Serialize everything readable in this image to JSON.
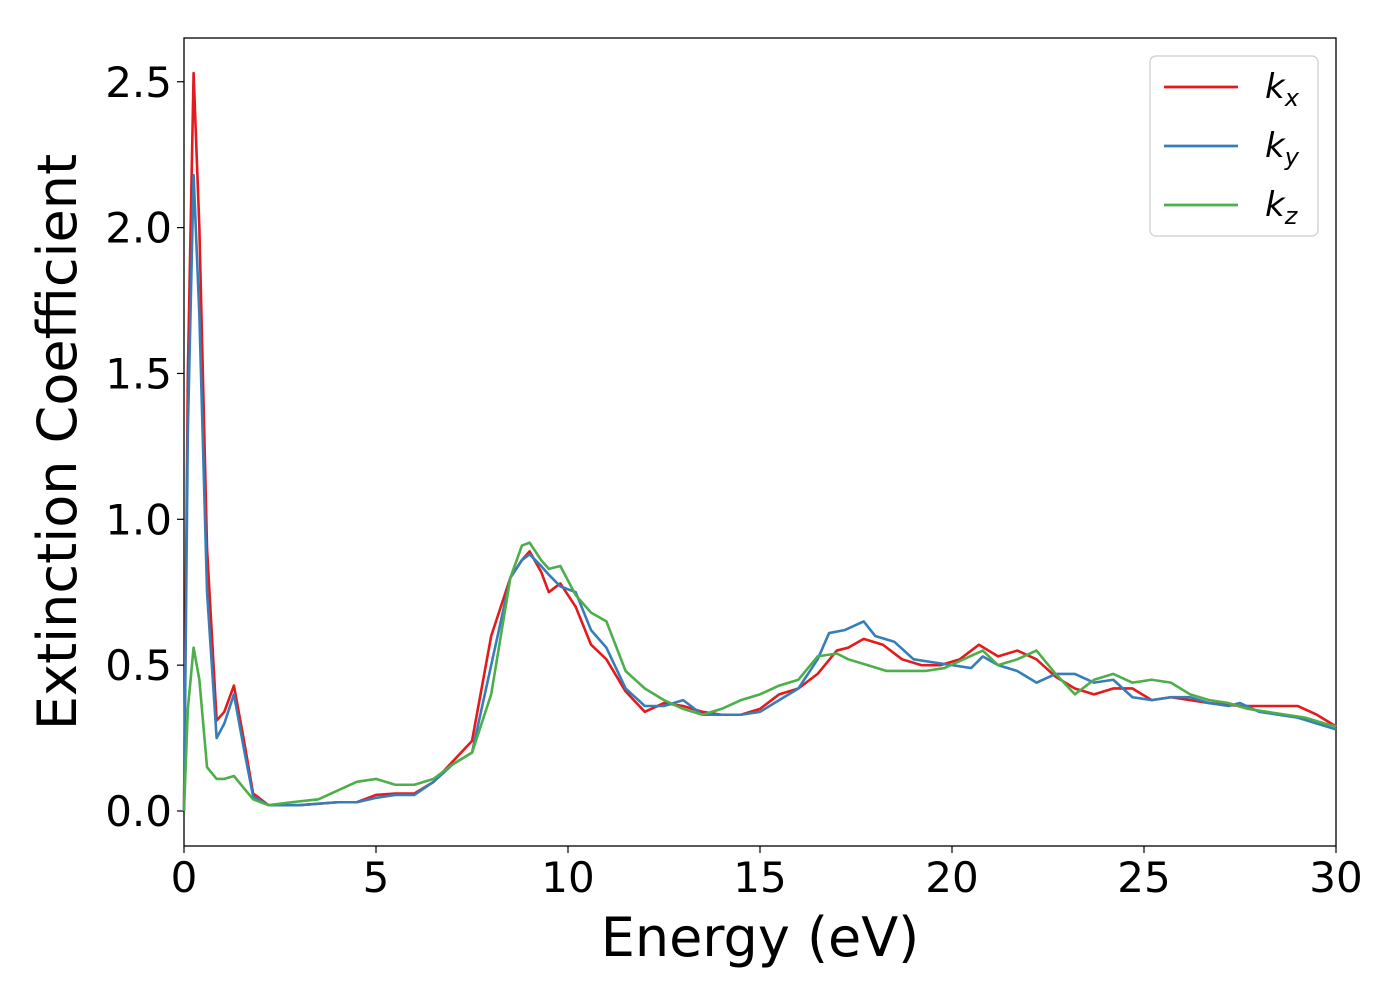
{
  "chart_data": {
    "type": "line",
    "title": "",
    "xlabel": "Energy (eV)",
    "ylabel": "Extinction Coefficient",
    "xlim": [
      0,
      30
    ],
    "ylim": [
      -0.12,
      2.65
    ],
    "xticks": [
      0,
      5,
      10,
      15,
      20,
      25,
      30
    ],
    "xtick_labels": [
      "0",
      "5",
      "10",
      "15",
      "20",
      "25",
      "30"
    ],
    "yticks": [
      0.0,
      0.5,
      1.0,
      1.5,
      2.0,
      2.5
    ],
    "ytick_labels": [
      "0.0",
      "0.5",
      "1.0",
      "1.5",
      "2.0",
      "2.5"
    ],
    "grid": false,
    "legend_position": "top-right",
    "series": [
      {
        "name": "k_x",
        "label_main": "k",
        "label_sub": "x",
        "color": "#e41a1c",
        "points": [
          [
            0,
            0
          ],
          [
            0.1,
            1.5
          ],
          [
            0.25,
            2.53
          ],
          [
            0.4,
            2.0
          ],
          [
            0.6,
            0.9
          ],
          [
            0.85,
            0.31
          ],
          [
            1.05,
            0.34
          ],
          [
            1.3,
            0.43
          ],
          [
            1.55,
            0.25
          ],
          [
            1.8,
            0.06
          ],
          [
            2.2,
            0.02
          ],
          [
            3,
            0.02
          ],
          [
            4,
            0.03
          ],
          [
            4.5,
            0.03
          ],
          [
            5,
            0.055
          ],
          [
            5.5,
            0.06
          ],
          [
            6,
            0.06
          ],
          [
            6.5,
            0.1
          ],
          [
            7,
            0.17
          ],
          [
            7.5,
            0.24
          ],
          [
            8,
            0.6
          ],
          [
            8.5,
            0.8
          ],
          [
            8.8,
            0.86
          ],
          [
            9,
            0.89
          ],
          [
            9.3,
            0.82
          ],
          [
            9.5,
            0.75
          ],
          [
            9.8,
            0.78
          ],
          [
            10.2,
            0.7
          ],
          [
            10.6,
            0.57
          ],
          [
            11,
            0.52
          ],
          [
            11.5,
            0.41
          ],
          [
            12,
            0.34
          ],
          [
            12.5,
            0.37
          ],
          [
            13,
            0.36
          ],
          [
            13.5,
            0.34
          ],
          [
            14,
            0.33
          ],
          [
            14.5,
            0.33
          ],
          [
            15,
            0.35
          ],
          [
            15.5,
            0.4
          ],
          [
            16,
            0.42
          ],
          [
            16.5,
            0.47
          ],
          [
            17,
            0.55
          ],
          [
            17.3,
            0.56
          ],
          [
            17.7,
            0.59
          ],
          [
            18.2,
            0.57
          ],
          [
            18.7,
            0.52
          ],
          [
            19.2,
            0.5
          ],
          [
            19.7,
            0.5
          ],
          [
            20.2,
            0.52
          ],
          [
            20.7,
            0.57
          ],
          [
            21.2,
            0.53
          ],
          [
            21.7,
            0.55
          ],
          [
            22.2,
            0.52
          ],
          [
            22.7,
            0.46
          ],
          [
            23.2,
            0.42
          ],
          [
            23.7,
            0.4
          ],
          [
            24.2,
            0.42
          ],
          [
            24.7,
            0.42
          ],
          [
            25.2,
            0.38
          ],
          [
            25.7,
            0.39
          ],
          [
            26.2,
            0.38
          ],
          [
            26.7,
            0.37
          ],
          [
            27.5,
            0.36
          ],
          [
            28.5,
            0.36
          ],
          [
            29,
            0.36
          ],
          [
            29.5,
            0.33
          ],
          [
            30,
            0.29
          ]
        ]
      },
      {
        "name": "k_y",
        "label_main": "k",
        "label_sub": "y",
        "color": "#377eb8",
        "points": [
          [
            0,
            0
          ],
          [
            0.1,
            1.3
          ],
          [
            0.25,
            2.18
          ],
          [
            0.4,
            1.7
          ],
          [
            0.6,
            0.75
          ],
          [
            0.85,
            0.25
          ],
          [
            1.05,
            0.3
          ],
          [
            1.3,
            0.4
          ],
          [
            1.55,
            0.22
          ],
          [
            1.8,
            0.05
          ],
          [
            2.2,
            0.02
          ],
          [
            3,
            0.02
          ],
          [
            4,
            0.03
          ],
          [
            4.5,
            0.03
          ],
          [
            5,
            0.045
          ],
          [
            5.5,
            0.055
          ],
          [
            6,
            0.055
          ],
          [
            6.5,
            0.1
          ],
          [
            7,
            0.16
          ],
          [
            7.5,
            0.2
          ],
          [
            8,
            0.5
          ],
          [
            8.5,
            0.8
          ],
          [
            8.8,
            0.86
          ],
          [
            9,
            0.88
          ],
          [
            9.3,
            0.84
          ],
          [
            9.5,
            0.81
          ],
          [
            9.8,
            0.77
          ],
          [
            10.2,
            0.75
          ],
          [
            10.6,
            0.62
          ],
          [
            11,
            0.56
          ],
          [
            11.5,
            0.42
          ],
          [
            12,
            0.36
          ],
          [
            12.5,
            0.36
          ],
          [
            13,
            0.38
          ],
          [
            13.5,
            0.33
          ],
          [
            14,
            0.33
          ],
          [
            14.5,
            0.33
          ],
          [
            15,
            0.34
          ],
          [
            15.5,
            0.38
          ],
          [
            16,
            0.42
          ],
          [
            16.5,
            0.52
          ],
          [
            16.8,
            0.61
          ],
          [
            17.2,
            0.62
          ],
          [
            17.7,
            0.65
          ],
          [
            18,
            0.6
          ],
          [
            18.5,
            0.58
          ],
          [
            19,
            0.52
          ],
          [
            19.5,
            0.51
          ],
          [
            20,
            0.5
          ],
          [
            20.5,
            0.49
          ],
          [
            20.8,
            0.53
          ],
          [
            21.2,
            0.5
          ],
          [
            21.7,
            0.48
          ],
          [
            22.2,
            0.44
          ],
          [
            22.7,
            0.47
          ],
          [
            23.2,
            0.47
          ],
          [
            23.7,
            0.44
          ],
          [
            24.2,
            0.45
          ],
          [
            24.7,
            0.39
          ],
          [
            25.2,
            0.38
          ],
          [
            25.7,
            0.39
          ],
          [
            26.2,
            0.39
          ],
          [
            26.7,
            0.37
          ],
          [
            27.2,
            0.36
          ],
          [
            27.5,
            0.37
          ],
          [
            28,
            0.34
          ],
          [
            28.5,
            0.33
          ],
          [
            29,
            0.32
          ],
          [
            29.5,
            0.3
          ],
          [
            30,
            0.28
          ]
        ]
      },
      {
        "name": "k_z",
        "label_main": "k",
        "label_sub": "z",
        "color": "#4daf4a",
        "points": [
          [
            0,
            0
          ],
          [
            0.1,
            0.35
          ],
          [
            0.25,
            0.56
          ],
          [
            0.4,
            0.45
          ],
          [
            0.6,
            0.15
          ],
          [
            0.85,
            0.11
          ],
          [
            1.05,
            0.11
          ],
          [
            1.3,
            0.12
          ],
          [
            1.55,
            0.08
          ],
          [
            1.8,
            0.04
          ],
          [
            2.2,
            0.02
          ],
          [
            2.8,
            0.03
          ],
          [
            3.5,
            0.04
          ],
          [
            4,
            0.07
          ],
          [
            4.5,
            0.1
          ],
          [
            5,
            0.11
          ],
          [
            5.5,
            0.09
          ],
          [
            6,
            0.09
          ],
          [
            6.5,
            0.11
          ],
          [
            7,
            0.16
          ],
          [
            7.5,
            0.2
          ],
          [
            8,
            0.4
          ],
          [
            8.5,
            0.8
          ],
          [
            8.8,
            0.91
          ],
          [
            9,
            0.92
          ],
          [
            9.3,
            0.86
          ],
          [
            9.5,
            0.83
          ],
          [
            9.8,
            0.84
          ],
          [
            10.2,
            0.74
          ],
          [
            10.6,
            0.68
          ],
          [
            11,
            0.65
          ],
          [
            11.5,
            0.48
          ],
          [
            12,
            0.42
          ],
          [
            12.5,
            0.38
          ],
          [
            13,
            0.35
          ],
          [
            13.5,
            0.33
          ],
          [
            14,
            0.35
          ],
          [
            14.5,
            0.38
          ],
          [
            15,
            0.4
          ],
          [
            15.5,
            0.43
          ],
          [
            16,
            0.45
          ],
          [
            16.5,
            0.53
          ],
          [
            17,
            0.54
          ],
          [
            17.3,
            0.52
          ],
          [
            17.8,
            0.5
          ],
          [
            18.3,
            0.48
          ],
          [
            18.8,
            0.48
          ],
          [
            19.3,
            0.48
          ],
          [
            19.8,
            0.49
          ],
          [
            20.3,
            0.52
          ],
          [
            20.8,
            0.55
          ],
          [
            21.2,
            0.5
          ],
          [
            21.7,
            0.52
          ],
          [
            22.2,
            0.55
          ],
          [
            22.7,
            0.47
          ],
          [
            23.2,
            0.4
          ],
          [
            23.7,
            0.45
          ],
          [
            24.2,
            0.47
          ],
          [
            24.7,
            0.44
          ],
          [
            25.2,
            0.45
          ],
          [
            25.7,
            0.44
          ],
          [
            26.2,
            0.4
          ],
          [
            26.7,
            0.38
          ],
          [
            27.2,
            0.37
          ],
          [
            27.7,
            0.35
          ],
          [
            28.2,
            0.34
          ],
          [
            28.7,
            0.33
          ],
          [
            29.2,
            0.32
          ],
          [
            29.7,
            0.3
          ],
          [
            30,
            0.29
          ]
        ]
      }
    ]
  }
}
